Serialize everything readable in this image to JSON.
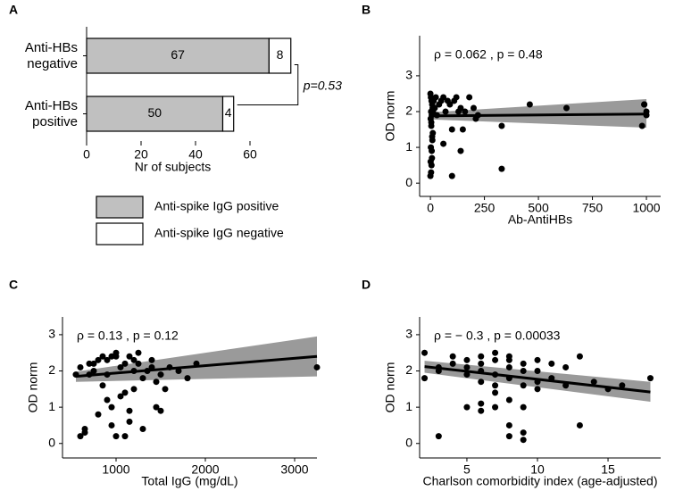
{
  "chart_data": [
    {
      "type": "bar",
      "label": "A",
      "orientation": "horizontal",
      "stacked": true,
      "categories": [
        "Anti-HBs negative",
        "Anti-HBs positive"
      ],
      "series": [
        {
          "name": "Anti-spike IgG positive",
          "color": "#c0c0c0",
          "values": [
            67,
            50
          ]
        },
        {
          "name": "Anti-spike IgG negative",
          "color": "#ffffff",
          "values": [
            8,
            4
          ]
        }
      ],
      "xlim": [
        0,
        80
      ],
      "xticks": [
        0,
        20,
        40,
        60
      ],
      "xlabel": "Nr of subjects",
      "annotation": "p=0.53"
    },
    {
      "type": "scatter",
      "label": "B",
      "xlabel": "Ab-AntiHBs",
      "ylabel": "OD norm",
      "annotation": "ρ = 0.062 , p = 0.48",
      "color": "#000000",
      "band_color": "#9a9a9a",
      "xlim": [
        -50,
        1066
      ],
      "xticks": [
        0,
        250,
        500,
        750,
        1000
      ],
      "ylim": [
        -0.37,
        4.12
      ],
      "yticks": [
        0,
        1,
        2,
        3
      ],
      "x": [
        0,
        2,
        5,
        8,
        10,
        3,
        6,
        1,
        4,
        12,
        15,
        20,
        25,
        30,
        40,
        50,
        60,
        70,
        80,
        90,
        100,
        110,
        120,
        130,
        140,
        150,
        160,
        180,
        200,
        210,
        220,
        330,
        460,
        630,
        980,
        990,
        1000,
        1000,
        990,
        0,
        3,
        5,
        7,
        2,
        9,
        11,
        4,
        6,
        1,
        8,
        60,
        100,
        140,
        330
      ],
      "y": [
        2.5,
        2.4,
        2.3,
        2.2,
        2.1,
        2.0,
        1.9,
        1.8,
        1.7,
        2.0,
        2.3,
        2.1,
        2.4,
        1.9,
        2.2,
        2.3,
        2.4,
        2.0,
        2.3,
        2.2,
        1.5,
        2.3,
        2.4,
        2.0,
        2.1,
        1.5,
        2.0,
        2.4,
        2.1,
        1.8,
        1.9,
        1.6,
        2.2,
        2.1,
        1.6,
        2.2,
        2.0,
        1.9,
        2.2,
        0.2,
        0.3,
        0.5,
        0.7,
        1.0,
        1.2,
        1.4,
        1.6,
        0.9,
        0.6,
        1.3,
        1.1,
        0.2,
        0.9,
        0.4
      ],
      "fit_x": [
        0,
        1000
      ],
      "fit_y": [
        1.88,
        1.93
      ],
      "ci_low": [
        1.78,
        1.55
      ],
      "ci_high": [
        1.98,
        2.35
      ]
    },
    {
      "type": "scatter",
      "label": "C",
      "xlabel": "Total IgG (mg/dL)",
      "ylabel": "OD norm",
      "annotation": "ρ = 0.13 , p = 0.12",
      "color": "#000000",
      "band_color": "#9a9a9a",
      "xlim": [
        400,
        3250
      ],
      "xticks": [
        1000,
        2000,
        3000
      ],
      "ylim": [
        -0.4,
        3.49
      ],
      "yticks": [
        0,
        1,
        2,
        3
      ],
      "x": [
        550,
        600,
        650,
        700,
        750,
        800,
        850,
        900,
        950,
        1000,
        1050,
        1100,
        1150,
        1200,
        1250,
        1300,
        1350,
        1400,
        1450,
        1500,
        1600,
        1700,
        1800,
        1900,
        3250,
        800,
        900,
        1000,
        1100,
        1200,
        1300,
        1400,
        850,
        950,
        1050,
        1150,
        1250,
        700,
        600,
        650,
        750,
        900,
        1000,
        1100,
        1200,
        1450,
        1500,
        1550,
        950,
        1150
      ],
      "y": [
        1.9,
        0.2,
        0.3,
        2.2,
        2.0,
        0.8,
        2.4,
        2.3,
        1.0,
        2.5,
        2.1,
        0.2,
        2.4,
        1.5,
        2.2,
        0.4,
        2.0,
        2.3,
        1.7,
        0.9,
        2.1,
        2.0,
        1.8,
        2.2,
        2.1,
        2.3,
        1.9,
        2.4,
        2.2,
        2.0,
        1.8,
        2.1,
        1.6,
        0.5,
        1.3,
        0.9,
        2.5,
        1.9,
        2.1,
        0.4,
        2.2,
        1.2,
        0.2,
        1.4,
        2.3,
        1.0,
        1.9,
        1.5,
        2.4,
        0.6
      ],
      "fit_x": [
        550,
        3250
      ],
      "fit_y": [
        1.85,
        2.4
      ],
      "ci_low": [
        1.7,
        1.85
      ],
      "ci_high": [
        1.98,
        2.95
      ]
    },
    {
      "type": "scatter",
      "label": "D",
      "xlabel": "Charlson comorbidity index (age-adjusted)",
      "ylabel": "OD norm",
      "annotation": "ρ = − 0.3 , p = 0.00033",
      "color": "#000000",
      "band_color": "#9a9a9a",
      "xlim": [
        1.65,
        18.73
      ],
      "xticks": [
        5,
        10,
        15
      ],
      "ylim": [
        -0.4,
        3.49
      ],
      "yticks": [
        0,
        1,
        2,
        3
      ],
      "x": [
        2,
        2,
        3,
        3,
        3,
        4,
        4,
        5,
        5,
        5,
        5,
        6,
        6,
        6,
        6,
        6,
        7,
        7,
        7,
        7,
        7,
        8,
        8,
        8,
        8,
        8,
        8,
        9,
        9,
        9,
        9,
        9,
        10,
        10,
        10,
        10,
        11,
        11,
        12,
        12,
        13,
        13,
        14,
        15,
        16,
        18,
        6,
        8,
        9,
        7
      ],
      "y": [
        2.5,
        1.8,
        2.0,
        0.2,
        2.1,
        2.4,
        2.2,
        2.3,
        1.9,
        1.0,
        2.1,
        2.4,
        0.9,
        1.7,
        2.2,
        2.0,
        2.5,
        1.0,
        2.3,
        1.9,
        1.4,
        2.4,
        0.2,
        0.5,
        1.8,
        2.1,
        2.3,
        2.2,
        0.1,
        1.6,
        2.0,
        1.0,
        2.3,
        1.7,
        2.0,
        1.5,
        2.2,
        1.8,
        1.6,
        2.1,
        2.4,
        0.5,
        1.7,
        1.5,
        1.6,
        1.8,
        1.1,
        1.2,
        0.3,
        1.6
      ],
      "fit_x": [
        2,
        18
      ],
      "fit_y": [
        2.12,
        1.42
      ],
      "ci_low": [
        1.95,
        1.15
      ],
      "ci_high": [
        2.28,
        1.7
      ]
    }
  ]
}
